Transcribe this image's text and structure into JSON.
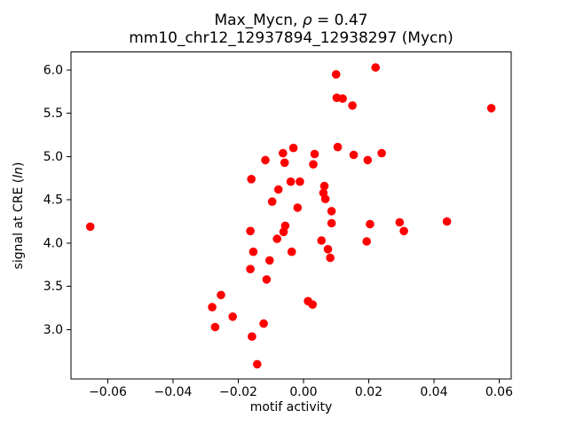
{
  "header": {
    "title_parts": {
      "pre": "Max_Mycn, ",
      "rho": "ρ",
      "post": " = 0.47"
    },
    "subtitle": "mm10_chr12_12937894_12938297 (Mycn)"
  },
  "axes": {
    "xlabel": "motif activity",
    "ylabel_parts": {
      "pre": "signal at CRE (",
      "italic": "ln",
      "post": ")"
    }
  },
  "chart_data": {
    "type": "scatter",
    "title": "Max_Mycn, ρ = 0.47",
    "subtitle": "mm10_chr12_12937894_12938297 (Mycn)",
    "xlabel": "motif activity",
    "ylabel": "signal at CRE (ln)",
    "marker_color": "#ff0000",
    "grid": false,
    "legend": "none",
    "xlim": [
      -0.0713,
      0.0637
    ],
    "ylim": [
      2.43,
      6.21
    ],
    "x_ticks": {
      "values": [
        -0.06,
        -0.04,
        -0.02,
        0.0,
        0.02,
        0.04,
        0.06
      ],
      "labels": [
        "−0.06",
        "−0.04",
        "−0.02",
        "0.00",
        "0.02",
        "0.04",
        "0.06"
      ]
    },
    "y_ticks": {
      "values": [
        3.0,
        3.5,
        4.0,
        4.5,
        5.0,
        5.5,
        6.0
      ],
      "labels": [
        "3.0",
        "3.5",
        "4.0",
        "4.5",
        "5.0",
        "5.5",
        "6.0"
      ]
    },
    "points": [
      [
        0.01,
        5.95
      ],
      [
        0.0221,
        6.03
      ],
      [
        0.0576,
        5.56
      ],
      [
        0.0102,
        5.68
      ],
      [
        0.012,
        5.67
      ],
      [
        0.015,
        5.59
      ],
      [
        -0.0117,
        4.96
      ],
      [
        -0.0063,
        5.04
      ],
      [
        -0.0031,
        5.1
      ],
      [
        -0.0058,
        4.93
      ],
      [
        0.0034,
        5.03
      ],
      [
        0.003,
        4.91
      ],
      [
        0.0105,
        5.11
      ],
      [
        0.0154,
        5.02
      ],
      [
        0.0197,
        4.96
      ],
      [
        0.024,
        5.04
      ],
      [
        -0.016,
        4.74
      ],
      [
        -0.0039,
        4.71
      ],
      [
        -0.0011,
        4.71
      ],
      [
        -0.0077,
        4.62
      ],
      [
        0.0064,
        4.66
      ],
      [
        0.0061,
        4.58
      ],
      [
        0.0067,
        4.51
      ],
      [
        -0.0096,
        4.48
      ],
      [
        -0.0018,
        4.41
      ],
      [
        0.0086,
        4.37
      ],
      [
        0.0086,
        4.23
      ],
      [
        0.0204,
        4.22
      ],
      [
        0.0295,
        4.24
      ],
      [
        0.0308,
        4.14
      ],
      [
        0.044,
        4.25
      ],
      [
        -0.0056,
        4.2
      ],
      [
        -0.0061,
        4.13
      ],
      [
        -0.0163,
        4.14
      ],
      [
        -0.0081,
        4.05
      ],
      [
        0.0055,
        4.03
      ],
      [
        0.0075,
        3.93
      ],
      [
        0.0082,
        3.83
      ],
      [
        -0.0036,
        3.9
      ],
      [
        0.0194,
        4.02
      ],
      [
        -0.0154,
        3.9
      ],
      [
        -0.0104,
        3.8
      ],
      [
        -0.0163,
        3.7
      ],
      [
        -0.0113,
        3.58
      ],
      [
        -0.0253,
        3.4
      ],
      [
        -0.028,
        3.26
      ],
      [
        -0.0217,
        3.15
      ],
      [
        -0.0271,
        3.03
      ],
      [
        -0.0122,
        3.07
      ],
      [
        -0.0158,
        2.92
      ],
      [
        -0.0142,
        2.6
      ],
      [
        0.0014,
        3.33
      ],
      [
        0.0028,
        3.29
      ],
      [
        -0.0654,
        4.19
      ]
    ]
  }
}
